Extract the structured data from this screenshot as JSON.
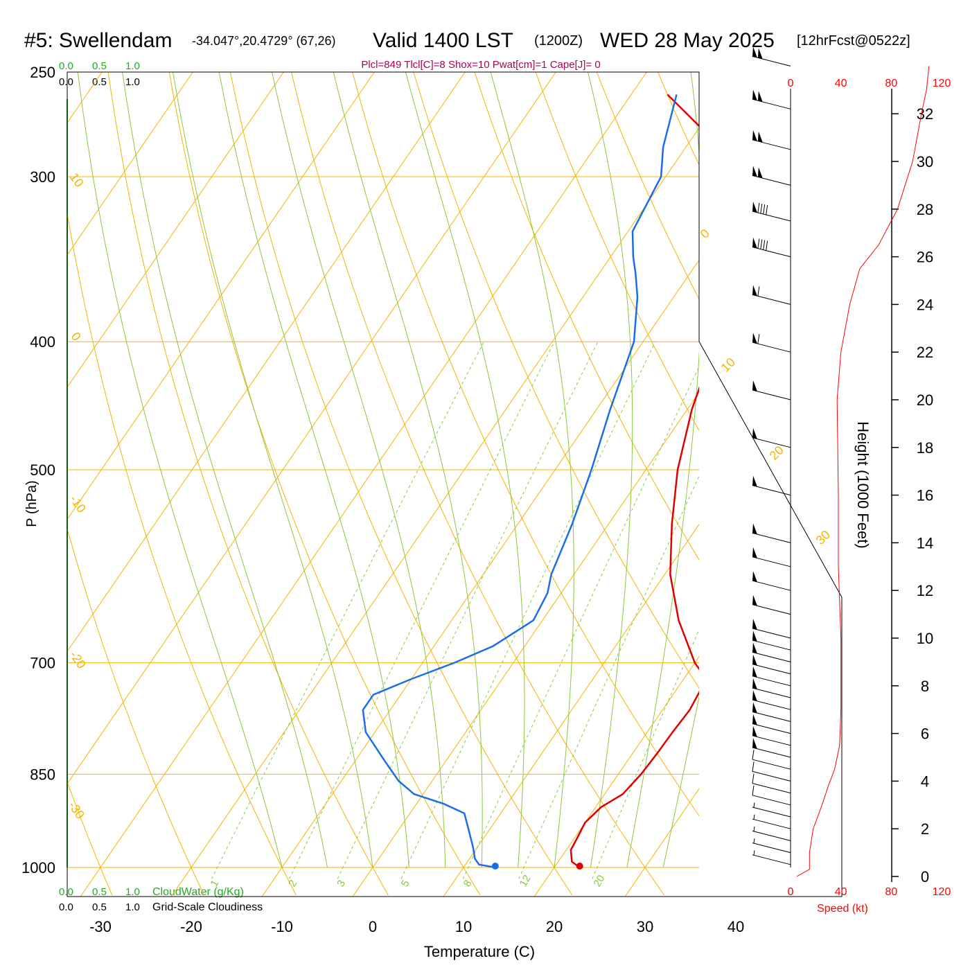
{
  "header": {
    "station": "#5: Swellendam",
    "coords": "-34.047°,20.4729° (67,26)",
    "valid": "Valid 1400 LST",
    "utc": "(1200Z)",
    "date": "WED 28 May 2025",
    "forecast": "[12hrFcst@0522z]",
    "indices": "Plcl=849 Tlcl[C]=8 Shox=10 Pwat[cm]=1 Cape[J]= 0"
  },
  "colors": {
    "temperature": "#e00000",
    "dewpoint": "#1a6fe8",
    "isobar": "#f5b400",
    "mixing_ratio": "#8cc83c",
    "cloudwater": "#22aa22",
    "speed": "#ff0000"
  },
  "scales": {
    "cloudwater_ticks": [
      "0.0",
      "0.5",
      "1.0"
    ],
    "cloudiness_ticks": [
      "0.0",
      "0.5",
      "1.0"
    ],
    "cloudwater_label": "CloudWater (g/Kg)",
    "cloudiness_label": "Grid-Scale Cloudiness",
    "speed_ticks": [
      "0",
      "40",
      "80",
      "120"
    ],
    "speed_label": "Speed (kt)"
  },
  "chart_data": {
    "type": "line",
    "title": "Skew-T sounding",
    "xlabel": "Temperature (C)",
    "ylabel": "P (hPa)",
    "y2label": "Height (1000 Feet)",
    "x_ticks": [
      "-30",
      "-20",
      "-10",
      "0",
      "10",
      "20",
      "30",
      "40"
    ],
    "p_ticks": [
      "250",
      "300",
      "400",
      "500",
      "700",
      "850",
      "1000"
    ],
    "height_ticks": [
      "0",
      "2",
      "4",
      "6",
      "8",
      "10",
      "12",
      "14",
      "16",
      "18",
      "20",
      "22",
      "24",
      "26",
      "28",
      "30",
      "32"
    ],
    "isotherm_labels": [
      "10",
      "0",
      "-10",
      "-20",
      "-30",
      "0",
      "10",
      "20",
      "30"
    ],
    "mixing_ratio_labels": [
      "1",
      "2",
      "3",
      "5",
      "8",
      "12",
      "20"
    ],
    "series": [
      {
        "name": "Temperature",
        "points": [
          [
            22.8,
            1000
          ],
          [
            21.5,
            990
          ],
          [
            20.5,
            970
          ],
          [
            20.3,
            950
          ],
          [
            20.0,
            925
          ],
          [
            20.6,
            900
          ],
          [
            22.0,
            880
          ],
          [
            22.5,
            850
          ],
          [
            22.7,
            820
          ],
          [
            22.8,
            790
          ],
          [
            23.0,
            760
          ],
          [
            22.5,
            720
          ],
          [
            20.0,
            700
          ],
          [
            15.0,
            650
          ],
          [
            10.6,
            600
          ],
          [
            7.0,
            550
          ],
          [
            3.5,
            500
          ],
          [
            0.5,
            450
          ],
          [
            -2.0,
            400
          ],
          [
            -4.5,
            370
          ],
          [
            -7.0,
            350
          ],
          [
            -9.0,
            330
          ],
          [
            -11.5,
            310
          ],
          [
            -13.3,
            300
          ],
          [
            -16.0,
            290
          ],
          [
            -20.0,
            275
          ],
          [
            -26.0,
            260
          ]
        ]
      },
      {
        "name": "Dewpoint",
        "points": [
          [
            13.5,
            1000
          ],
          [
            11.5,
            995
          ],
          [
            10.6,
            985
          ],
          [
            9.5,
            965
          ],
          [
            7.3,
            930
          ],
          [
            6.0,
            910
          ],
          [
            3.0,
            895
          ],
          [
            -1.0,
            880
          ],
          [
            -3.7,
            860
          ],
          [
            -6.8,
            830
          ],
          [
            -11.0,
            790
          ],
          [
            -13.0,
            760
          ],
          [
            -13.0,
            740
          ],
          [
            -10.0,
            720
          ],
          [
            -6.5,
            700
          ],
          [
            -3.5,
            680
          ],
          [
            -1.0,
            650
          ],
          [
            -1.5,
            620
          ],
          [
            -2.5,
            600
          ],
          [
            -4.0,
            550
          ],
          [
            -6.0,
            500
          ],
          [
            -8.5,
            450
          ],
          [
            -11.0,
            400
          ],
          [
            -14.0,
            370
          ],
          [
            -16.0,
            355
          ],
          [
            -17.5,
            345
          ],
          [
            -19.5,
            330
          ],
          [
            -20.5,
            300
          ],
          [
            -22.5,
            285
          ],
          [
            -25.0,
            260
          ]
        ]
      }
    ],
    "surface": {
      "temperature": 22.8,
      "dewpoint": 13.5
    },
    "wind_barbs": [
      {
        "height": 0.5,
        "speed": 5
      },
      {
        "height": 1.0,
        "speed": 5
      },
      {
        "height": 1.5,
        "speed": 5
      },
      {
        "height": 2.0,
        "speed": 5
      },
      {
        "height": 2.5,
        "speed": 5
      },
      {
        "height": 3.0,
        "speed": 10
      },
      {
        "height": 3.5,
        "speed": 10
      },
      {
        "height": 4.0,
        "speed": 10
      },
      {
        "height": 4.5,
        "speed": 10
      },
      {
        "height": 5.0,
        "speed": 50
      },
      {
        "height": 5.5,
        "speed": 50
      },
      {
        "height": 6.0,
        "speed": 50
      },
      {
        "height": 6.5,
        "speed": 50
      },
      {
        "height": 7.0,
        "speed": 50
      },
      {
        "height": 7.5,
        "speed": 50
      },
      {
        "height": 8.0,
        "speed": 50
      },
      {
        "height": 8.5,
        "speed": 50
      },
      {
        "height": 9.0,
        "speed": 50
      },
      {
        "height": 9.5,
        "speed": 50
      },
      {
        "height": 10.0,
        "speed": 50
      },
      {
        "height": 11.0,
        "speed": 50
      },
      {
        "height": 12.0,
        "speed": 50
      },
      {
        "height": 13.0,
        "speed": 50
      },
      {
        "height": 14.0,
        "speed": 50
      },
      {
        "height": 16.0,
        "speed": 50
      },
      {
        "height": 18.0,
        "speed": 50
      },
      {
        "height": 20.0,
        "speed": 50
      },
      {
        "height": 22.0,
        "speed": 60
      },
      {
        "height": 24.0,
        "speed": 60
      },
      {
        "height": 26.0,
        "speed": 90
      },
      {
        "height": 27.5,
        "speed": 90
      },
      {
        "height": 29.0,
        "speed": 100
      },
      {
        "height": 30.5,
        "speed": 100
      },
      {
        "height": 32.2,
        "speed": 100
      },
      {
        "height": 34.0,
        "speed": 100
      }
    ],
    "wind_speed_profile": [
      [
        0.0,
        5
      ],
      [
        0.3,
        15
      ],
      [
        1.0,
        15
      ],
      [
        2.0,
        18
      ],
      [
        3.0,
        25
      ],
      [
        3.8,
        30
      ],
      [
        4.5,
        35
      ],
      [
        5.5,
        39
      ],
      [
        7.0,
        40
      ],
      [
        10.0,
        40
      ],
      [
        13.0,
        38
      ],
      [
        16.0,
        38
      ],
      [
        20.0,
        37
      ],
      [
        22.0,
        40
      ],
      [
        24.0,
        47
      ],
      [
        25.5,
        55
      ],
      [
        26.5,
        70
      ],
      [
        28.0,
        85
      ],
      [
        30.0,
        97
      ],
      [
        32.0,
        104
      ],
      [
        33.0,
        108
      ],
      [
        34.0,
        110
      ]
    ]
  }
}
